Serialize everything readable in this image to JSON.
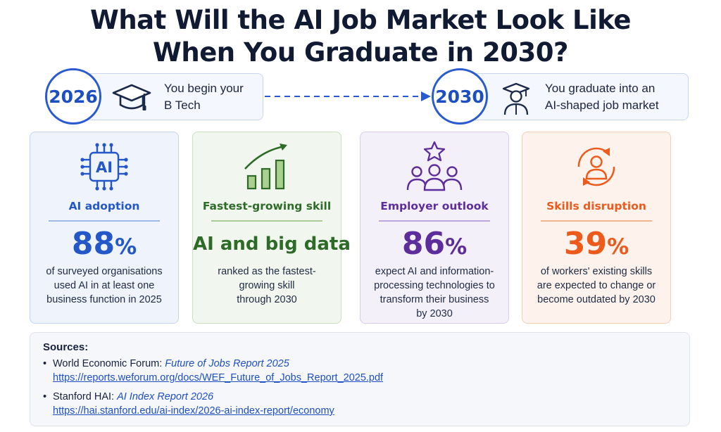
{
  "title": {
    "line1": "What Will the AI Job Market Look Like",
    "line2": "When You Graduate in 2030?"
  },
  "timeline": {
    "start": {
      "year": "2026",
      "icon": "graduation-cap-icon",
      "text_line1": "You begin your",
      "text_line2": "B Tech"
    },
    "end": {
      "year": "2030",
      "icon": "graduate-person-icon",
      "text_line1": "You graduate into an",
      "text_line2": "AI-shaped job market"
    },
    "connector": "dashed-arrow-icon"
  },
  "cards": [
    {
      "icon": "ai-chip-icon",
      "icon_text": "AI",
      "label": "AI adoption",
      "stat": "88",
      "stat_unit": "%",
      "desc": [
        "of surveyed organisations",
        "used AI in at least one",
        "business function in 2025"
      ],
      "color": "#2458c9"
    },
    {
      "icon": "growth-bar-chart-icon",
      "label": "Fastest-growing skill",
      "stat": "AI and big data",
      "desc": [
        "ranked as the fastest-",
        "growing skill",
        "through 2030"
      ],
      "color": "#2e6b28"
    },
    {
      "icon": "team-star-icon",
      "label": "Employer outlook",
      "stat": "86",
      "stat_unit": "%",
      "desc": [
        "expect AI and information-",
        "processing technologies to",
        "transform their business",
        "by 2030"
      ],
      "color": "#5d2d9c"
    },
    {
      "icon": "person-cycle-icon",
      "label": "Skills disruption",
      "stat": "39",
      "stat_unit": "%",
      "desc": [
        "of workers' existing skills",
        "are expected to change or",
        "become outdated by 2030"
      ],
      "color": "#ec5a1c"
    }
  ],
  "sources": {
    "heading": "Sources:",
    "items": [
      {
        "bullet": "•",
        "org": "World Economic Forum: ",
        "report": "Future of Jobs Report 2025",
        "url": "https://reports.weforum.org/docs/WEF_Future_of_Jobs_Report_2025.pdf"
      },
      {
        "bullet": "•",
        "org": "Stanford HAI: ",
        "report": "AI Index Report 2026",
        "url": "https://hai.stanford.edu/ai-index/2026-ai-index-report/economy"
      }
    ]
  }
}
